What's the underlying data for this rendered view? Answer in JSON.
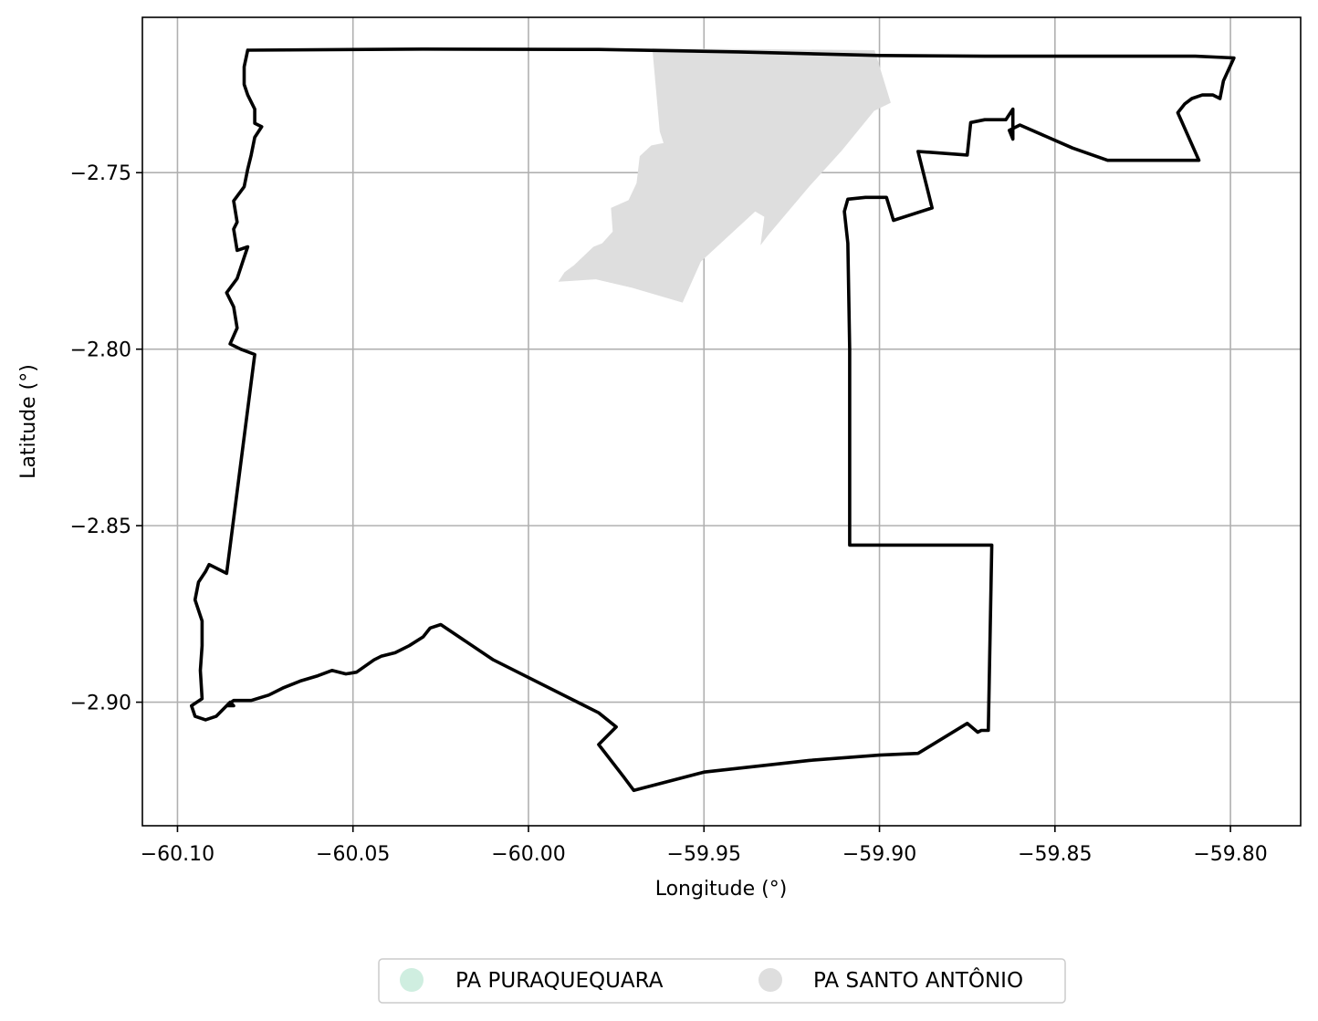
{
  "chart_data": {
    "type": "map",
    "xlabel": "Longitude (°)",
    "ylabel": "Latitude (°)",
    "xlim": [
      -60.11,
      -59.78
    ],
    "ylim": [
      -2.935,
      -2.706
    ],
    "grid": true,
    "x_ticks": [
      {
        "value": -60.1,
        "label": "−60.10"
      },
      {
        "value": -60.05,
        "label": "−60.05"
      },
      {
        "value": -60.0,
        "label": "−60.00"
      },
      {
        "value": -59.95,
        "label": "−59.95"
      },
      {
        "value": -59.9,
        "label": "−59.90"
      },
      {
        "value": -59.85,
        "label": "−59.85"
      },
      {
        "value": -59.8,
        "label": "−59.80"
      }
    ],
    "y_ticks": [
      {
        "value": -2.75,
        "label": "−2.75"
      },
      {
        "value": -2.8,
        "label": "−2.80"
      },
      {
        "value": -2.85,
        "label": "−2.85"
      },
      {
        "value": -2.9,
        "label": "−2.90"
      }
    ],
    "legend": {
      "placement": "bottom-center",
      "entries": [
        {
          "label": "PA PURAQUEQUARA",
          "color": "#cfeee0"
        },
        {
          "label": "PA SANTO ANTÔNIO",
          "color": "#dedede"
        }
      ]
    },
    "regions": [
      {
        "legend_index": 1,
        "fill": "#dedede",
        "coords": [
          [
            -59.9647,
            -2.7148
          ],
          [
            -59.9014,
            -2.7153
          ],
          [
            -59.8968,
            -2.7302
          ],
          [
            -59.9015,
            -2.7325
          ],
          [
            -59.9107,
            -2.7437
          ],
          [
            -59.9201,
            -2.754
          ],
          [
            -59.9317,
            -2.7677
          ],
          [
            -59.9339,
            -2.7706
          ],
          [
            -59.9328,
            -2.7625
          ],
          [
            -59.9354,
            -2.761
          ],
          [
            -59.9509,
            -2.7752
          ],
          [
            -59.9561,
            -2.7868
          ],
          [
            -59.9705,
            -2.7826
          ],
          [
            -59.9808,
            -2.7802
          ],
          [
            -59.9915,
            -2.7809
          ],
          [
            -59.9897,
            -2.7782
          ],
          [
            -59.987,
            -2.7762
          ],
          [
            -59.9815,
            -2.771
          ],
          [
            -59.979,
            -2.77
          ],
          [
            -59.976,
            -2.7667
          ],
          [
            -59.9765,
            -2.76
          ],
          [
            -59.9715,
            -2.7578
          ],
          [
            -59.9692,
            -2.753
          ],
          [
            -59.9683,
            -2.7453
          ],
          [
            -59.965,
            -2.7423
          ],
          [
            -59.9615,
            -2.7416
          ],
          [
            -59.9626,
            -2.7383
          ]
        ]
      }
    ],
    "boundary": {
      "color": "#000000",
      "coords": [
        [
          -60.08,
          -2.7153
        ],
        [
          -60.03,
          -2.715
        ],
        [
          -59.98,
          -2.7151
        ],
        [
          -59.94,
          -2.7158
        ],
        [
          -59.9,
          -2.7168
        ],
        [
          -59.87,
          -2.717
        ],
        [
          -59.84,
          -2.717
        ],
        [
          -59.81,
          -2.717
        ],
        [
          -59.799,
          -2.7175
        ],
        [
          -59.802,
          -2.724
        ],
        [
          -59.803,
          -2.729
        ],
        [
          -59.805,
          -2.728
        ],
        [
          -59.808,
          -2.728
        ],
        [
          -59.811,
          -2.729
        ],
        [
          -59.813,
          -2.7305
        ],
        [
          -59.815,
          -2.733
        ],
        [
          -59.809,
          -2.7465
        ],
        [
          -59.835,
          -2.7465
        ],
        [
          -59.845,
          -2.743
        ],
        [
          -59.86,
          -2.7365
        ],
        [
          -59.863,
          -2.738
        ],
        [
          -59.862,
          -2.7405
        ],
        [
          -59.862,
          -2.732
        ],
        [
          -59.864,
          -2.735
        ],
        [
          -59.87,
          -2.735
        ],
        [
          -59.874,
          -2.7358
        ],
        [
          -59.875,
          -2.745
        ],
        [
          -59.889,
          -2.744
        ],
        [
          -59.885,
          -2.76
        ],
        [
          -59.896,
          -2.7635
        ],
        [
          -59.898,
          -2.757
        ],
        [
          -59.904,
          -2.757
        ],
        [
          -59.909,
          -2.7575
        ],
        [
          -59.91,
          -2.761
        ],
        [
          -59.909,
          -2.77
        ],
        [
          -59.9085,
          -2.8
        ],
        [
          -59.9085,
          -2.8555
        ],
        [
          -59.868,
          -2.8555
        ],
        [
          -59.869,
          -2.908
        ],
        [
          -59.871,
          -2.908
        ],
        [
          -59.872,
          -2.9085
        ],
        [
          -59.875,
          -2.906
        ],
        [
          -59.889,
          -2.9145
        ],
        [
          -59.9,
          -2.915
        ],
        [
          -59.92,
          -2.9165
        ],
        [
          -59.95,
          -2.9198
        ],
        [
          -59.97,
          -2.925
        ],
        [
          -59.973,
          -2.921
        ],
        [
          -59.98,
          -2.912
        ],
        [
          -59.975,
          -2.907
        ],
        [
          -59.98,
          -2.903
        ],
        [
          -60.01,
          -2.888
        ],
        [
          -60.025,
          -2.878
        ],
        [
          -60.028,
          -2.879
        ],
        [
          -60.03,
          -2.8815
        ],
        [
          -60.034,
          -2.884
        ],
        [
          -60.038,
          -2.886
        ],
        [
          -60.042,
          -2.887
        ],
        [
          -60.044,
          -2.888
        ],
        [
          -60.049,
          -2.8915
        ],
        [
          -60.052,
          -2.892
        ],
        [
          -60.056,
          -2.891
        ],
        [
          -60.06,
          -2.8925
        ],
        [
          -60.065,
          -2.894
        ],
        [
          -60.07,
          -2.896
        ],
        [
          -60.074,
          -2.898
        ],
        [
          -60.079,
          -2.8995
        ],
        [
          -60.084,
          -2.8995
        ],
        [
          -60.086,
          -2.901
        ],
        [
          -60.084,
          -2.901
        ],
        [
          -60.085,
          -2.9
        ],
        [
          -60.089,
          -2.904
        ],
        [
          -60.092,
          -2.905
        ],
        [
          -60.095,
          -2.904
        ],
        [
          -60.096,
          -2.901
        ],
        [
          -60.093,
          -2.899
        ],
        [
          -60.0935,
          -2.891
        ],
        [
          -60.093,
          -2.884
        ],
        [
          -60.093,
          -2.877
        ],
        [
          -60.095,
          -2.871
        ],
        [
          -60.094,
          -2.866
        ],
        [
          -60.092,
          -2.863
        ],
        [
          -60.091,
          -2.861
        ],
        [
          -60.086,
          -2.8635
        ],
        [
          -60.078,
          -2.8015
        ],
        [
          -60.082,
          -2.8
        ],
        [
          -60.085,
          -2.7985
        ],
        [
          -60.083,
          -2.794
        ],
        [
          -60.084,
          -2.788
        ],
        [
          -60.086,
          -2.784
        ],
        [
          -60.083,
          -2.78
        ],
        [
          -60.081,
          -2.774
        ],
        [
          -60.08,
          -2.771
        ],
        [
          -60.083,
          -2.772
        ],
        [
          -60.084,
          -2.766
        ],
        [
          -60.083,
          -2.764
        ],
        [
          -60.084,
          -2.758
        ],
        [
          -60.081,
          -2.754
        ],
        [
          -60.08,
          -2.749
        ],
        [
          -60.079,
          -2.745
        ],
        [
          -60.078,
          -2.74
        ],
        [
          -60.076,
          -2.737
        ],
        [
          -60.078,
          -2.736
        ],
        [
          -60.078,
          -2.732
        ],
        [
          -60.08,
          -2.728
        ],
        [
          -60.081,
          -2.725
        ],
        [
          -60.081,
          -2.72
        ],
        [
          -60.08,
          -2.7153
        ]
      ]
    }
  }
}
